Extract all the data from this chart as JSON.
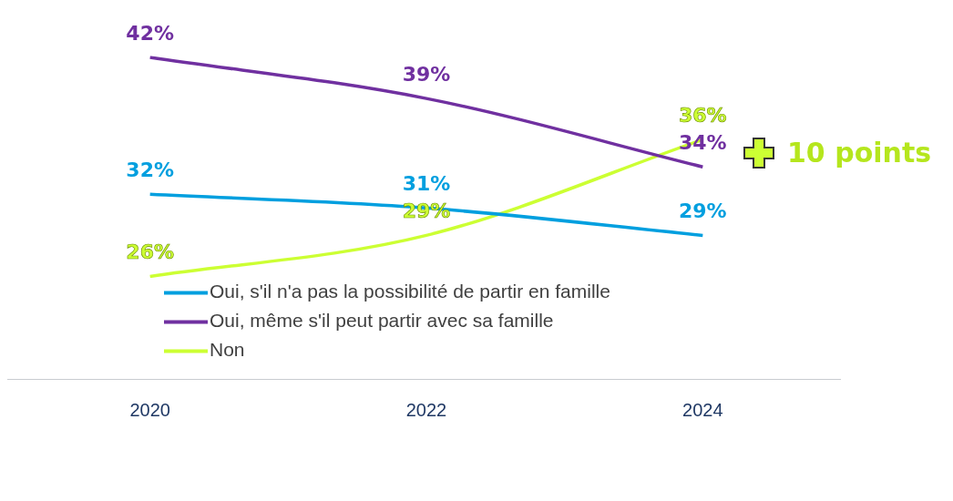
{
  "chart_data": {
    "type": "line",
    "categories": [
      "2020",
      "2022",
      "2024"
    ],
    "series": [
      {
        "name": "Oui, s'il n'a pas la possibilité de partir en famille",
        "color": "#009fdf",
        "values": [
          32,
          31,
          29
        ],
        "value_labels": [
          "32%",
          "31%",
          "29%"
        ]
      },
      {
        "name": "Oui, même s'il peut partir avec sa famille",
        "color": "#7030a0",
        "values": [
          42,
          39,
          34
        ],
        "value_labels": [
          "42%",
          "39%",
          "34%"
        ]
      },
      {
        "name": "Non",
        "color": "#ccff33",
        "values": [
          26,
          29,
          36
        ],
        "value_labels": [
          "26%",
          "29%",
          "36%"
        ]
      }
    ],
    "legend": "bottom",
    "grid": false,
    "marker": "none",
    "annotations": [
      "10 points"
    ]
  }
}
